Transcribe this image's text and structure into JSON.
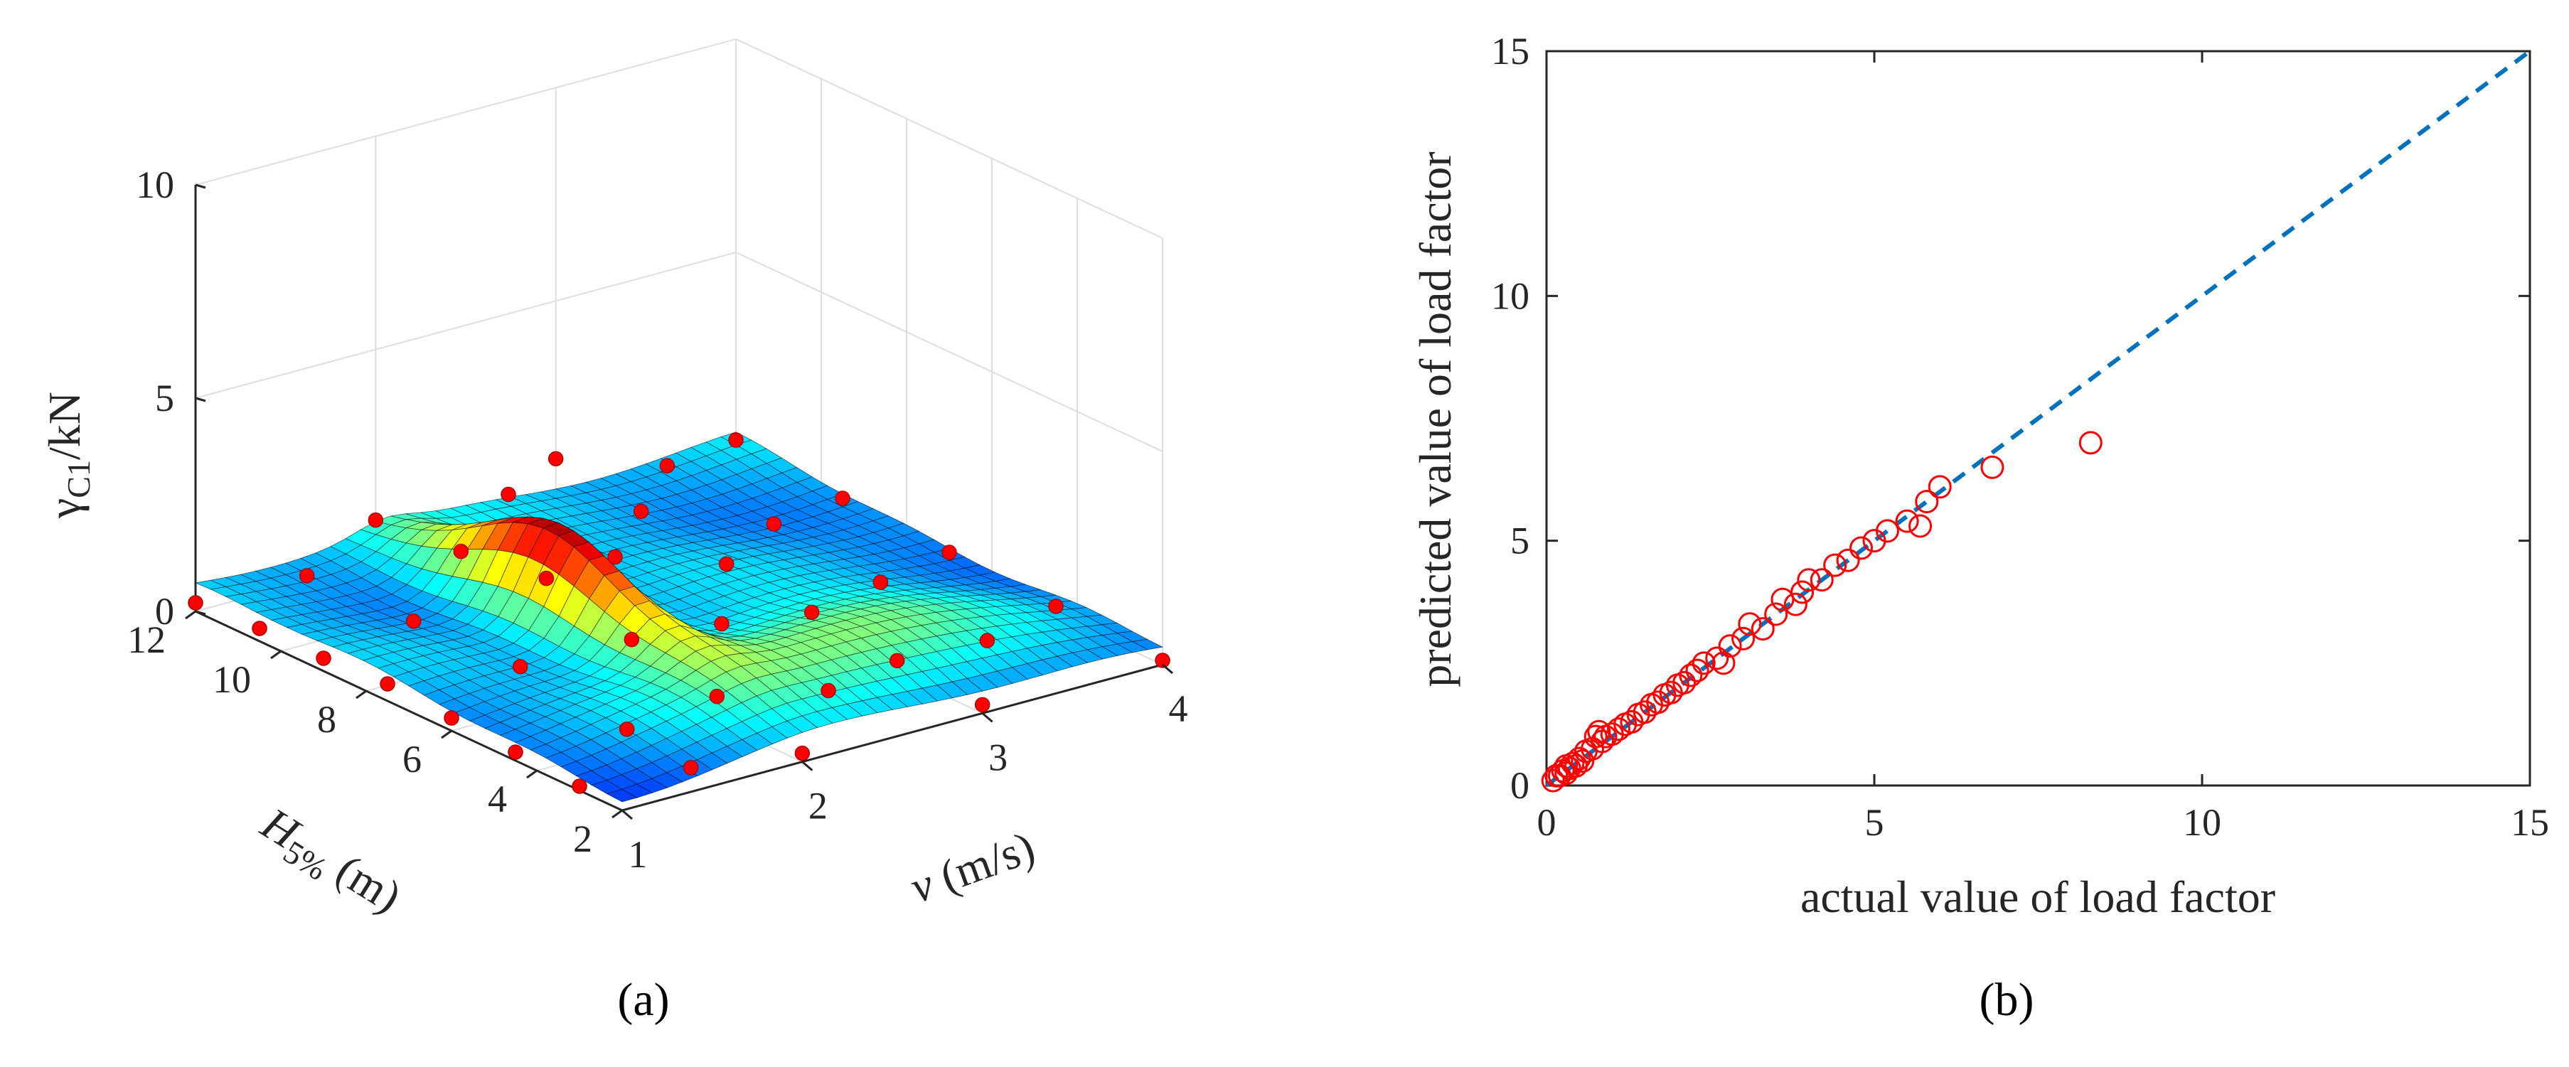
{
  "chart_data": [
    {
      "panel_label": "(a)",
      "type": "surface",
      "zlabel": "γ_C1/kN",
      "zlabel_main": "γ",
      "zlabel_sub": "C1",
      "zlabel_tail": "/kN",
      "ylabel": "H_5% (m)",
      "ylabel_main": "H",
      "ylabel_sub": "5%",
      "ylabel_tail": " (m)",
      "xlabel": "v (m/s)",
      "xlabel_main": "v",
      "xlabel_tail": " (m/s)",
      "xlim": [
        1,
        4
      ],
      "ylim": [
        2,
        12
      ],
      "zlim": [
        0,
        10
      ],
      "x_ticks": [
        "1",
        "2",
        "3",
        "4"
      ],
      "y_ticks": [
        "2",
        "4",
        "6",
        "8",
        "10",
        "12"
      ],
      "z_ticks": [
        "0",
        "5",
        "10"
      ],
      "grid": true,
      "colormap": "jet",
      "surface_color": "#1a1aa8",
      "point_color": "#ff0000",
      "points": [
        {
          "x": 1.0,
          "y": 12.0,
          "z": 0.2
        },
        {
          "x": 1.0,
          "y": 10.5,
          "z": 0.3
        },
        {
          "x": 1.0,
          "y": 9.0,
          "z": 0.3
        },
        {
          "x": 1.0,
          "y": 7.5,
          "z": 0.4
        },
        {
          "x": 1.0,
          "y": 6.0,
          "z": 0.3
        },
        {
          "x": 1.0,
          "y": 4.5,
          "z": 0.2
        },
        {
          "x": 1.0,
          "y": 3.0,
          "z": 0.1
        },
        {
          "x": 1.5,
          "y": 11.5,
          "z": 0.5
        },
        {
          "x": 1.5,
          "y": 9.0,
          "z": 0.6
        },
        {
          "x": 1.5,
          "y": 6.5,
          "z": 0.7
        },
        {
          "x": 1.5,
          "y": 4.0,
          "z": 0.4
        },
        {
          "x": 1.5,
          "y": 2.5,
          "z": 0.2
        },
        {
          "x": 2.0,
          "y": 12.0,
          "z": 1.0
        },
        {
          "x": 2.0,
          "y": 10.0,
          "z": 1.2
        },
        {
          "x": 2.0,
          "y": 8.0,
          "z": 1.5
        },
        {
          "x": 2.0,
          "y": 6.0,
          "z": 1.0
        },
        {
          "x": 2.0,
          "y": 4.0,
          "z": 0.6
        },
        {
          "x": 2.0,
          "y": 2.0,
          "z": 0.2
        },
        {
          "x": 2.5,
          "y": 11.0,
          "z": 1.5
        },
        {
          "x": 2.5,
          "y": 8.5,
          "z": 1.2
        },
        {
          "x": 2.5,
          "y": 6.0,
          "z": 0.8
        },
        {
          "x": 2.5,
          "y": 3.5,
          "z": 0.4
        },
        {
          "x": 3.0,
          "y": 12.0,
          "z": 1.3
        },
        {
          "x": 3.0,
          "y": 10.0,
          "z": 1.0
        },
        {
          "x": 3.0,
          "y": 8.0,
          "z": 0.7
        },
        {
          "x": 3.0,
          "y": 6.0,
          "z": 0.5
        },
        {
          "x": 3.0,
          "y": 4.0,
          "z": 0.3
        },
        {
          "x": 3.0,
          "y": 2.0,
          "z": 0.2
        },
        {
          "x": 3.5,
          "y": 11.5,
          "z": 0.8
        },
        {
          "x": 3.5,
          "y": 9.0,
          "z": 0.6
        },
        {
          "x": 3.5,
          "y": 6.5,
          "z": 0.4
        },
        {
          "x": 3.5,
          "y": 4.0,
          "z": 0.2
        },
        {
          "x": 4.0,
          "y": 12.0,
          "z": 0.6
        },
        {
          "x": 4.0,
          "y": 9.5,
          "z": 0.4
        },
        {
          "x": 4.0,
          "y": 7.0,
          "z": 0.3
        },
        {
          "x": 4.0,
          "y": 4.5,
          "z": 0.2
        },
        {
          "x": 4.0,
          "y": 2.0,
          "z": 0.1
        }
      ]
    },
    {
      "panel_label": "(b)",
      "type": "scatter",
      "xlabel": "actual value of load factor",
      "ylabel": "predicted value of load factor",
      "xlim": [
        0,
        15
      ],
      "ylim": [
        0,
        15
      ],
      "x_ticks": [
        "0",
        "5",
        "10",
        "15"
      ],
      "y_ticks": [
        "0",
        "5",
        "10",
        "15"
      ],
      "grid": false,
      "marker_color": "#ff0000",
      "line_color": "#0072bd",
      "reference_line": {
        "x": [
          0,
          15
        ],
        "y": [
          0,
          15
        ],
        "style": "dashed"
      },
      "points": [
        {
          "x": 0.1,
          "y": 0.1
        },
        {
          "x": 0.15,
          "y": 0.2
        },
        {
          "x": 0.2,
          "y": 0.2
        },
        {
          "x": 0.25,
          "y": 0.3
        },
        {
          "x": 0.3,
          "y": 0.25
        },
        {
          "x": 0.3,
          "y": 0.4
        },
        {
          "x": 0.35,
          "y": 0.35
        },
        {
          "x": 0.4,
          "y": 0.45
        },
        {
          "x": 0.45,
          "y": 0.4
        },
        {
          "x": 0.5,
          "y": 0.55
        },
        {
          "x": 0.55,
          "y": 0.5
        },
        {
          "x": 0.6,
          "y": 0.7
        },
        {
          "x": 0.7,
          "y": 0.75
        },
        {
          "x": 0.75,
          "y": 1.0
        },
        {
          "x": 0.8,
          "y": 1.1
        },
        {
          "x": 0.85,
          "y": 0.9
        },
        {
          "x": 0.9,
          "y": 1.0
        },
        {
          "x": 1.0,
          "y": 1.05
        },
        {
          "x": 1.1,
          "y": 1.15
        },
        {
          "x": 1.2,
          "y": 1.25
        },
        {
          "x": 1.3,
          "y": 1.3
        },
        {
          "x": 1.4,
          "y": 1.45
        },
        {
          "x": 1.5,
          "y": 1.5
        },
        {
          "x": 1.6,
          "y": 1.65
        },
        {
          "x": 1.7,
          "y": 1.7
        },
        {
          "x": 1.8,
          "y": 1.85
        },
        {
          "x": 1.9,
          "y": 1.9
        },
        {
          "x": 2.0,
          "y": 2.05
        },
        {
          "x": 2.1,
          "y": 2.1
        },
        {
          "x": 2.2,
          "y": 2.25
        },
        {
          "x": 2.3,
          "y": 2.35
        },
        {
          "x": 2.4,
          "y": 2.5
        },
        {
          "x": 2.6,
          "y": 2.6
        },
        {
          "x": 2.7,
          "y": 2.5
        },
        {
          "x": 2.8,
          "y": 2.85
        },
        {
          "x": 3.0,
          "y": 3.0
        },
        {
          "x": 3.1,
          "y": 3.3
        },
        {
          "x": 3.3,
          "y": 3.2
        },
        {
          "x": 3.5,
          "y": 3.5
        },
        {
          "x": 3.6,
          "y": 3.8
        },
        {
          "x": 3.8,
          "y": 3.7
        },
        {
          "x": 3.9,
          "y": 3.95
        },
        {
          "x": 4.0,
          "y": 4.2
        },
        {
          "x": 4.2,
          "y": 4.2
        },
        {
          "x": 4.4,
          "y": 4.5
        },
        {
          "x": 4.6,
          "y": 4.6
        },
        {
          "x": 4.8,
          "y": 4.85
        },
        {
          "x": 5.0,
          "y": 5.0
        },
        {
          "x": 5.2,
          "y": 5.2
        },
        {
          "x": 5.5,
          "y": 5.4
        },
        {
          "x": 5.7,
          "y": 5.3
        },
        {
          "x": 5.8,
          "y": 5.8
        },
        {
          "x": 6.0,
          "y": 6.1
        },
        {
          "x": 6.8,
          "y": 6.5
        },
        {
          "x": 8.3,
          "y": 7.0
        }
      ]
    }
  ]
}
